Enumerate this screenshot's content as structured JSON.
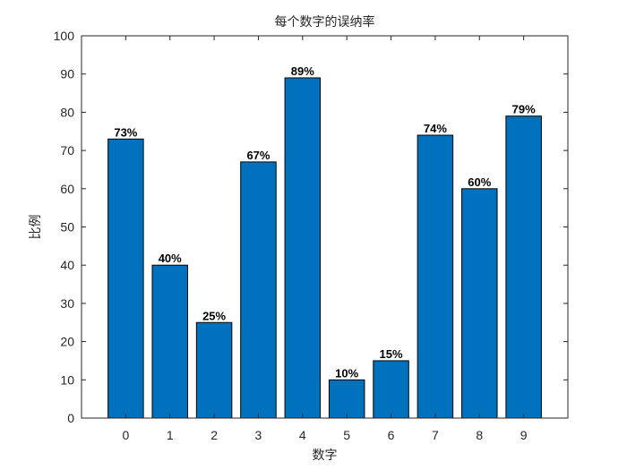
{
  "chart_data": {
    "type": "bar",
    "title": "每个数字的误纳率",
    "xlabel": "数字",
    "ylabel": "比例",
    "categories": [
      "0",
      "1",
      "2",
      "3",
      "4",
      "5",
      "6",
      "7",
      "8",
      "9"
    ],
    "values": [
      73,
      40,
      25,
      67,
      89,
      10,
      15,
      74,
      60,
      79
    ],
    "data_labels": [
      "73%",
      "40%",
      "25%",
      "67%",
      "89%",
      "10%",
      "15%",
      "74%",
      "60%",
      "79%"
    ],
    "ylim": [
      0,
      100
    ],
    "yticks": [
      0,
      10,
      20,
      30,
      40,
      50,
      60,
      70,
      80,
      90,
      100
    ],
    "grid": false,
    "legend": "none",
    "bar_color": "#0072BD",
    "box": true
  }
}
